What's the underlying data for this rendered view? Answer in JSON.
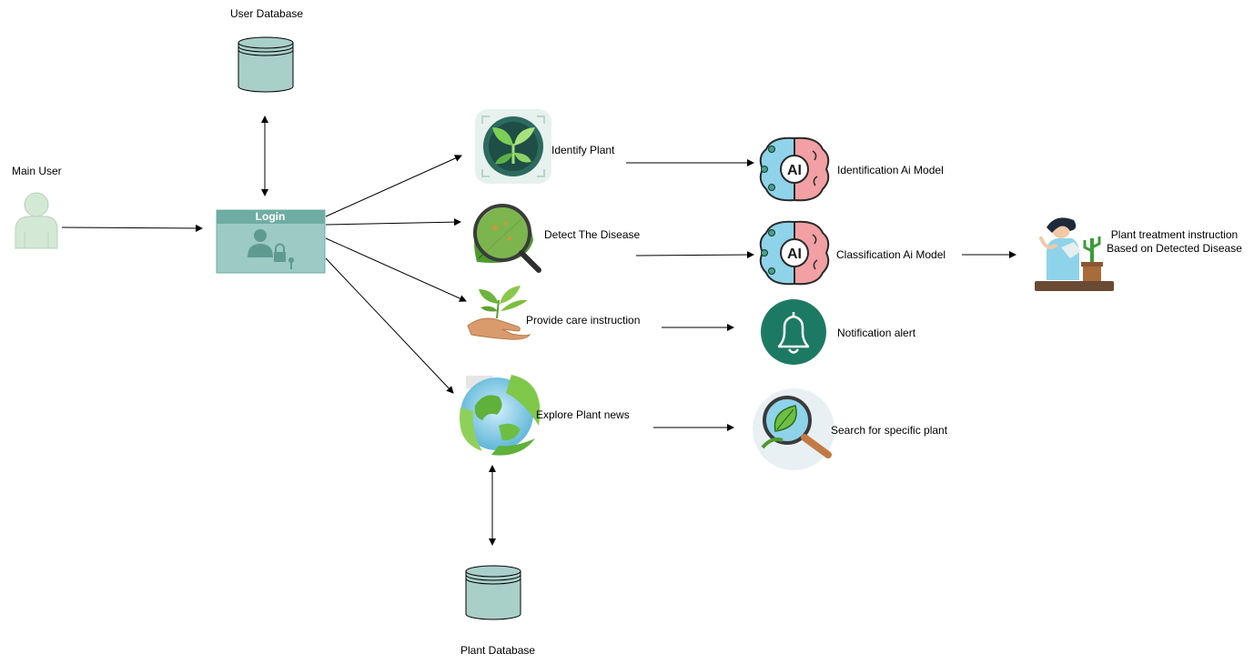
{
  "diagram": {
    "user_database_label": "User Database",
    "main_user_label": "Main User",
    "login_label": "Login",
    "identify_plant_label": "Identify Plant",
    "detect_disease_label": "Detect The Disease",
    "care_instruction_label": "Provide care instruction",
    "explore_news_label": "Explore Plant news",
    "plant_database_label": "Plant Database",
    "identification_model_label": "Identification Ai Model",
    "classification_model_label": "Classification Ai Model",
    "notification_label": "Notification alert",
    "search_plant_label": "Search for specific plant",
    "treatment_line1": "Plant treatment instruction",
    "treatment_line2": "Based on Detected Disease",
    "ai_badge": "AI"
  },
  "colors": {
    "db_fill": "#a9cfc9",
    "login_fill": "#9ccbc3",
    "login_header": "#6fada2",
    "user_fill": "#d4e8d6",
    "brain_left": "#8fd3ea",
    "brain_right": "#f2a0a4",
    "bell_bg": "#1d7a62",
    "leaf_green": "#5fb13a"
  },
  "icons": {
    "user_database": "database-icon",
    "plant_database": "database-icon",
    "main_user": "user-icon",
    "login": "login-lock-icon",
    "identify_plant": "plant-scan-icon",
    "detect_disease": "leaf-magnifier-icon",
    "care_instruction": "hand-plant-icon",
    "explore_news": "globe-leaf-icon",
    "ai_model": "ai-brain-icon",
    "notification": "bell-icon",
    "search": "search-leaf-icon",
    "treatment": "gardener-watering-icon"
  }
}
